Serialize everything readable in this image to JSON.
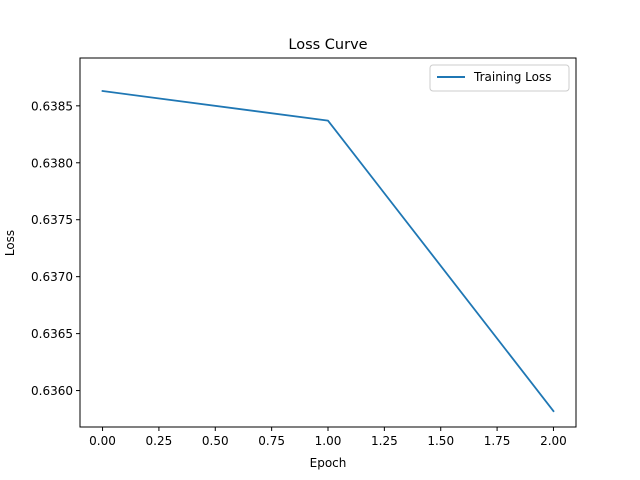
{
  "chart_data": {
    "type": "line",
    "title": "Loss Curve",
    "xlabel": "Epoch",
    "ylabel": "Loss",
    "xlim": [
      -0.1,
      2.1
    ],
    "ylim": [
      0.63568,
      0.63892
    ],
    "x_ticks": [
      0.0,
      0.25,
      0.5,
      0.75,
      1.0,
      1.25,
      1.5,
      1.75,
      2.0
    ],
    "x_tick_labels": [
      "0.00",
      "0.25",
      "0.50",
      "0.75",
      "1.00",
      "1.25",
      "1.50",
      "1.75",
      "2.00"
    ],
    "y_ticks": [
      0.636,
      0.6365,
      0.637,
      0.6375,
      0.638,
      0.6385
    ],
    "y_tick_labels": [
      "0.6360",
      "0.6365",
      "0.6370",
      "0.6375",
      "0.6380",
      "0.6385"
    ],
    "grid": false,
    "legend_position": "top-right",
    "series": [
      {
        "name": "Training Loss",
        "color": "#1f77b4",
        "x": [
          0,
          1,
          2
        ],
        "y": [
          0.63863,
          0.63837,
          0.63582
        ]
      }
    ]
  }
}
